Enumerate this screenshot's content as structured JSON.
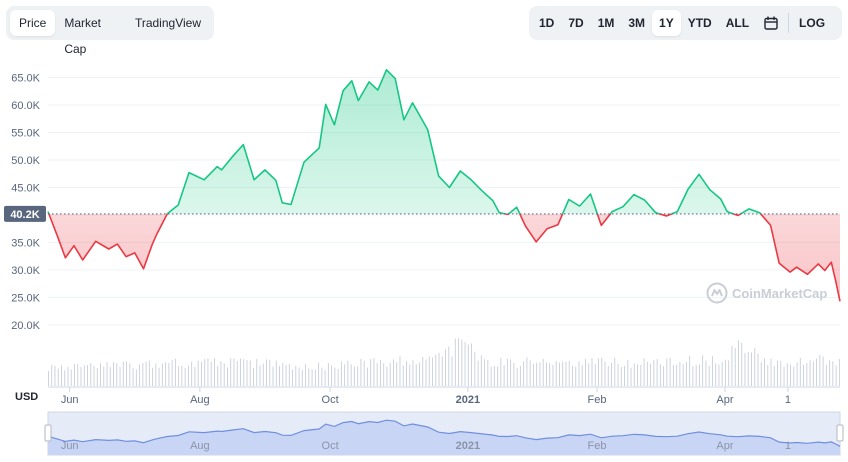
{
  "tabs": [
    {
      "label": "Price",
      "active": true
    },
    {
      "label": "Market Cap",
      "active": false
    },
    {
      "label": "TradingView",
      "active": false
    }
  ],
  "ranges": [
    {
      "label": "1D",
      "active": false
    },
    {
      "label": "7D",
      "active": false
    },
    {
      "label": "1M",
      "active": false
    },
    {
      "label": "3M",
      "active": false
    },
    {
      "label": "1Y",
      "active": true
    },
    {
      "label": "YTD",
      "active": false
    },
    {
      "label": "ALL",
      "active": false
    }
  ],
  "calendar_icon": "calendar-icon",
  "log_label": "LOG",
  "currency_label": "USD",
  "watermark": "CoinMarketCap",
  "colors": {
    "up": "#16c784",
    "down": "#ea3943",
    "navigator": "#6f8fe0"
  },
  "chart_data": {
    "type": "area",
    "reference_value": 40200,
    "reference_label": "40.2K",
    "y_ticks": [
      "20.0K",
      "25.0K",
      "30.0K",
      "35.0K",
      "40.0K",
      "45.0K",
      "50.0K",
      "55.0K",
      "60.0K",
      "65.0K"
    ],
    "y_tick_values": [
      20000,
      25000,
      30000,
      35000,
      40000,
      45000,
      50000,
      55000,
      60000,
      65000
    ],
    "ylim": [
      17800,
      70000
    ],
    "x_labels": [
      "Jun",
      "Aug",
      "Oct",
      "2021",
      "Feb",
      "Apr",
      "1"
    ],
    "x_label_positions": [
      10,
      70,
      130,
      193.5,
      253,
      312,
      341
    ],
    "xlim": [
      0,
      365
    ],
    "grid": true,
    "series": [
      {
        "x": [
          0,
          4,
          8,
          12,
          16,
          22,
          28,
          32,
          36,
          40,
          44,
          48,
          50,
          55,
          60,
          65,
          72,
          78,
          80,
          85,
          90,
          95,
          100,
          105,
          108,
          112,
          118,
          125,
          128,
          132,
          136,
          140,
          143,
          148,
          152,
          156,
          160,
          164,
          168,
          175,
          180,
          185,
          190,
          195,
          200,
          205,
          208,
          212,
          216,
          220,
          225,
          230,
          235,
          240,
          245,
          250,
          255,
          260,
          265,
          270,
          275,
          280,
          285,
          290,
          295,
          300,
          305,
          310,
          313,
          318,
          323,
          328,
          333,
          337,
          342,
          345,
          350,
          355,
          358,
          361,
          363,
          365
        ],
        "y": [
          40600,
          36500,
          32200,
          34400,
          31800,
          35200,
          33800,
          34700,
          32400,
          33100,
          30200,
          34600,
          36400,
          40200,
          41800,
          47700,
          46400,
          48800,
          48200,
          50600,
          52800,
          46400,
          48200,
          46300,
          42200,
          41900,
          49600,
          52200,
          60100,
          56400,
          62600,
          64400,
          60800,
          64200,
          62700,
          66400,
          64800,
          57300,
          60400,
          55500,
          47100,
          45000,
          48000,
          46400,
          44400,
          42600,
          40400,
          40100,
          41400,
          38000,
          35100,
          37500,
          38200,
          42800,
          41600,
          43800,
          38100,
          40600,
          41500,
          43700,
          42700,
          40400,
          39800,
          40600,
          44700,
          47400,
          44600,
          42900,
          40600,
          39900,
          41100,
          40400,
          38100,
          31200,
          29600,
          30500,
          29200,
          31100,
          29900,
          31400,
          28000,
          24300
        ]
      },
      {
        "name": "volume",
        "x": [
          0,
          30,
          60,
          90,
          120,
          150,
          180,
          193,
          200,
          225,
          255,
          285,
          312,
          320,
          330,
          345,
          360,
          365
        ],
        "y": [
          5,
          5,
          6,
          6,
          5,
          6,
          7,
          12,
          6,
          6,
          6,
          6,
          7,
          11,
          6,
          6,
          7,
          6
        ]
      }
    ]
  }
}
